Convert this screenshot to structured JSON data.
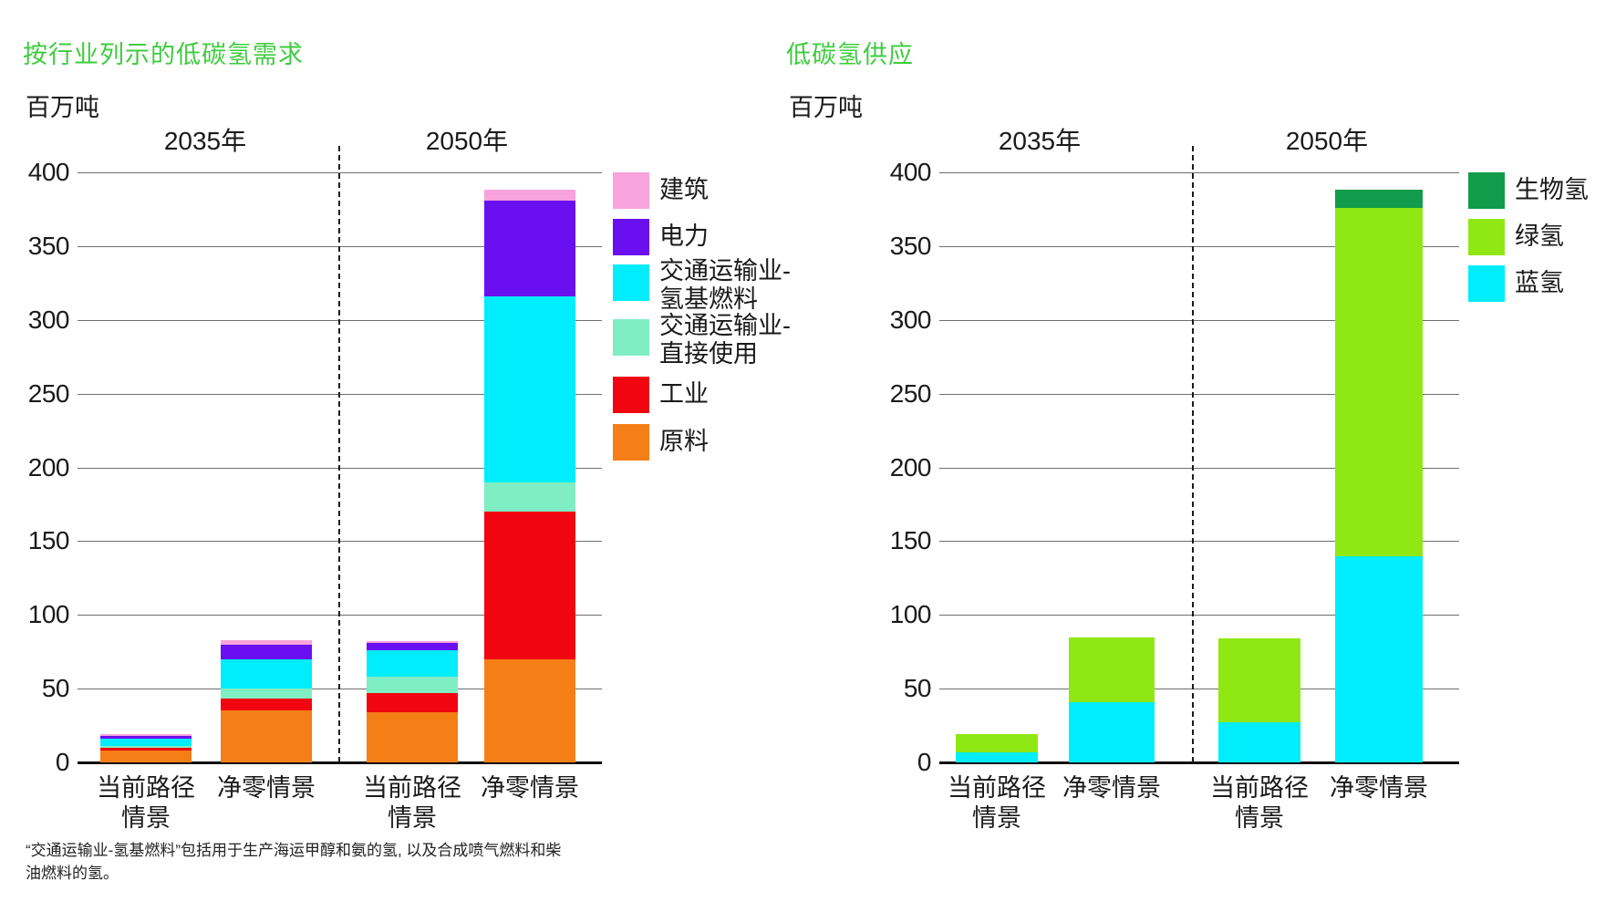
{
  "footnote": "“交通运输业-氢基燃料”包括用于生产海运甲醇和氨的氢, 以及合成喷气燃料和柴油燃料的氢。",
  "accent_title_color": "#3ECC3E",
  "chart_data": [
    {
      "id": "demand",
      "type": "bar",
      "stacked": true,
      "title": "按行业列示的低碳氢需求",
      "ylabel": "百万吨",
      "ylim": [
        0,
        400
      ],
      "ytick_step": 50,
      "grid": true,
      "legend_position": "right",
      "period_headers": [
        "2035年",
        "2050年"
      ],
      "categories": [
        "当前路径\n情景",
        "净零情景",
        "当前路径\n情景",
        "净零情景"
      ],
      "series": [
        {
          "name": "建筑",
          "color": "#F8A3DB",
          "values": [
            1,
            3,
            1,
            7
          ]
        },
        {
          "name": "电力",
          "color": "#6A0FF0",
          "values": [
            2,
            10,
            5,
            65
          ]
        },
        {
          "name": "交通运输业-\n氢基燃料",
          "color": "#00EDFD",
          "values": [
            5,
            20,
            18,
            126
          ]
        },
        {
          "name": "交通运输业-\n直接使用",
          "color": "#80EEC3",
          "values": [
            1,
            7,
            11,
            20
          ]
        },
        {
          "name": "工业",
          "color": "#F00511",
          "values": [
            2,
            8,
            13,
            100
          ]
        },
        {
          "name": "原料",
          "color": "#F57E17",
          "values": [
            8,
            35,
            34,
            70
          ]
        }
      ],
      "stack_note": "legend order is top-of-stack first; bars stack bottom-up in reverse series order",
      "totals": [
        19,
        83,
        82,
        388
      ]
    },
    {
      "id": "supply",
      "type": "bar",
      "stacked": true,
      "title": "低碳氢供应",
      "ylabel": "百万吨",
      "ylim": [
        0,
        400
      ],
      "ytick_step": 50,
      "grid": true,
      "legend_position": "right",
      "period_headers": [
        "2035年",
        "2050年"
      ],
      "categories": [
        "当前路径\n情景",
        "净零情景",
        "当前路径\n情景",
        "净零情景"
      ],
      "series": [
        {
          "name": "生物氢",
          "color": "#119C4B",
          "values": [
            0,
            0,
            0,
            12
          ]
        },
        {
          "name": "绿氢",
          "color": "#8FE813",
          "values": [
            12,
            44,
            57,
            236
          ]
        },
        {
          "name": "蓝氢",
          "color": "#00EDFD",
          "values": [
            7,
            41,
            27,
            140
          ]
        }
      ],
      "stack_note": "legend order is top-of-stack first; bars stack bottom-up in reverse series order",
      "totals": [
        19,
        85,
        84,
        388
      ]
    }
  ]
}
